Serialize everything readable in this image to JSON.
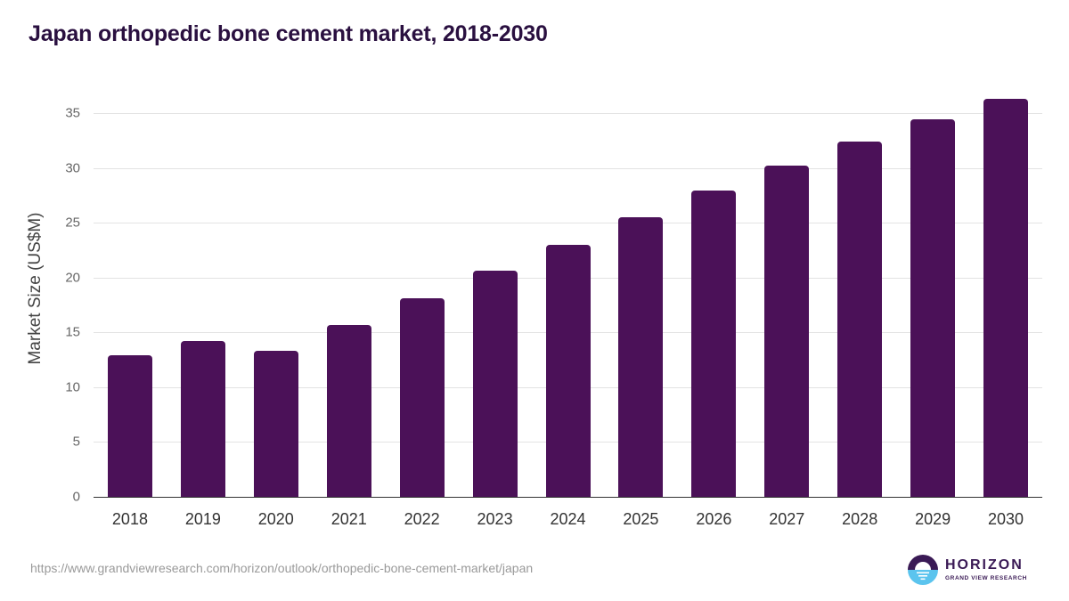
{
  "title": "Japan orthopedic bone cement market, 2018-2030",
  "source_url": "https://www.grandviewresearch.com/horizon/outlook/orthopedic-bone-cement-market/japan",
  "logo": {
    "name": "HORIZON",
    "subtitle": "GRAND VIEW RESEARCH",
    "icon": "horizon-sun-icon"
  },
  "colors": {
    "bar": "#4b1158",
    "title": "#2a1040",
    "logo_top": "#3a1a55",
    "logo_bottom": "#5bc4ee"
  },
  "chart_data": {
    "type": "bar",
    "title": "Japan orthopedic bone cement market, 2018-2030",
    "xlabel": "",
    "ylabel": "Market Size (US$M)",
    "categories": [
      "2018",
      "2019",
      "2020",
      "2021",
      "2022",
      "2023",
      "2024",
      "2025",
      "2026",
      "2027",
      "2028",
      "2029",
      "2030"
    ],
    "values": [
      12.9,
      14.2,
      13.3,
      15.7,
      18.1,
      20.6,
      23.0,
      25.5,
      27.9,
      30.2,
      32.4,
      34.4,
      36.3
    ],
    "ylim": [
      0,
      37
    ],
    "yticks": [
      0,
      5,
      10,
      15,
      20,
      25,
      30,
      35
    ],
    "grid": true,
    "legend": "none"
  }
}
